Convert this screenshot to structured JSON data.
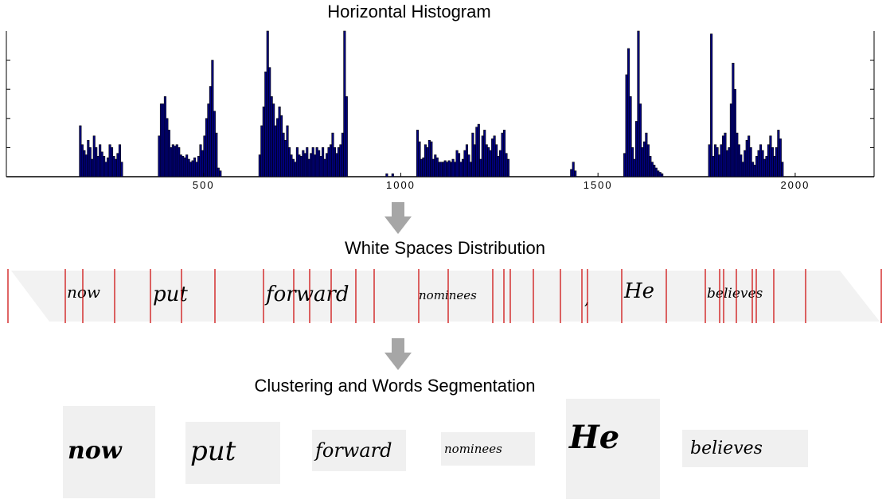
{
  "diagram": {
    "title_histogram": "Horizontal Histogram",
    "title_whitespace": "White Spaces Distribution",
    "title_segmentation": "Clustering and Words Segmentation",
    "arrow_color": "#a6a6a6",
    "bar_color": "#00007f",
    "line_color": "#cc0000"
  },
  "chart_data": {
    "type": "bar",
    "title": "Horizontal Histogram",
    "xlabel": "",
    "ylabel": "",
    "xlim": [
      0,
      2200
    ],
    "ylim": [
      0,
      1
    ],
    "x_ticks": [
      "500",
      "1000",
      "1500",
      "2000"
    ],
    "x_tick_values": [
      500,
      1000,
      1500,
      2000
    ],
    "groups": [
      {
        "name": "now",
        "x0": 185,
        "values": [
          0.35,
          0.22,
          0.18,
          0.15,
          0.25,
          0.2,
          0.12,
          0.28,
          0.2,
          0.14,
          0.22,
          0.17,
          0.14,
          0.1,
          0.13,
          0.22,
          0.2,
          0.14,
          0.12,
          0.16,
          0.22,
          0.1
        ]
      },
      {
        "name": "put",
        "x0": 385,
        "values": [
          0.28,
          0.5,
          0.5,
          0.55,
          0.4,
          0.32,
          0.2,
          0.22,
          0.21,
          0.22,
          0.2,
          0.15,
          0.14,
          0.13,
          0.15,
          0.12,
          0.1,
          0.11,
          0.13,
          0.1,
          0.14,
          0.22,
          0.18,
          0.28,
          0.4,
          0.5,
          0.62,
          0.8,
          0.45,
          0.3,
          0.06,
          0.04
        ]
      },
      {
        "name": "forward",
        "x0": 640,
        "values": [
          0.15,
          0.35,
          0.48,
          0.72,
          1.0,
          0.75,
          0.55,
          0.5,
          0.35,
          0.4,
          0.48,
          0.42,
          0.3,
          0.25,
          0.35,
          0.2,
          0.15,
          0.12,
          0.1,
          0.2,
          0.15,
          0.14,
          0.18,
          0.16,
          0.2,
          0.12,
          0.16,
          0.2,
          0.15,
          0.2,
          0.18,
          0.14,
          0.2,
          0.12,
          0.16,
          0.2,
          0.22,
          0.3,
          0.2,
          0.16,
          0.2,
          0.22,
          0.3,
          1.0,
          0.55,
          0.0
        ]
      },
      {
        "name": "dot",
        "x0": 962,
        "values": [
          0.02,
          0.0,
          0.0,
          0.02
        ]
      },
      {
        "name": "nominees",
        "x0": 1040,
        "values": [
          0.32,
          0.24,
          0.12,
          0.13,
          0.22,
          0.2,
          0.25,
          0.24,
          0.12,
          0.15,
          0.13,
          0.1,
          0.1,
          0.1,
          0.11,
          0.1,
          0.11,
          0.1,
          0.12,
          0.1,
          0.18,
          0.16,
          0.1,
          0.12,
          0.18,
          0.22,
          0.15,
          0.1,
          0.3,
          0.22,
          0.34,
          0.36,
          0.12,
          0.28,
          0.32,
          0.22,
          0.2,
          0.18,
          0.26,
          0.28,
          0.22,
          0.14,
          0.18,
          0.3,
          0.32,
          0.16,
          0.12
        ]
      },
      {
        "name": "comma",
        "x0": 1430,
        "values": [
          0.05,
          0.1,
          0.04
        ]
      },
      {
        "name": "He",
        "x0": 1565,
        "values": [
          0.16,
          0.7,
          0.88,
          0.55,
          0.2,
          0.12,
          0.38,
          1.0,
          0.5,
          0.2,
          0.24,
          0.3,
          0.22,
          0.14,
          0.1,
          0.08,
          0.06,
          0.04,
          0.03,
          0.02
        ]
      },
      {
        "name": "believes",
        "x0": 1780,
        "values": [
          0.22,
          0.98,
          0.14,
          0.22,
          0.2,
          0.15,
          0.22,
          0.28,
          0.3,
          0.18,
          0.2,
          0.5,
          0.78,
          0.6,
          0.3,
          0.22,
          0.15,
          0.1,
          0.18,
          0.25,
          0.28,
          0.2,
          0.1,
          0.08,
          0.14,
          0.18,
          0.22,
          0.18,
          0.12,
          0.14,
          0.22,
          0.28,
          0.2,
          0.14,
          0.2,
          0.32,
          0.26,
          0.1
        ]
      }
    ],
    "bin_width": 5
  },
  "whitespace": {
    "words": [
      "now",
      "put",
      "forward",
      "nominees",
      ",",
      "He",
      "believes"
    ],
    "separators_x": [
      10,
      82,
      104,
      144,
      189,
      228,
      270,
      331,
      369,
      389,
      416,
      447,
      470,
      526,
      563,
      619,
      633,
      641,
      670,
      704,
      731,
      738,
      781,
      837,
      886,
      904,
      909,
      925,
      945,
      950,
      972,
      1012,
      1107
    ]
  },
  "segmentation": {
    "words": [
      "now",
      "put",
      "forward",
      "nominees",
      "He",
      "believes"
    ]
  }
}
